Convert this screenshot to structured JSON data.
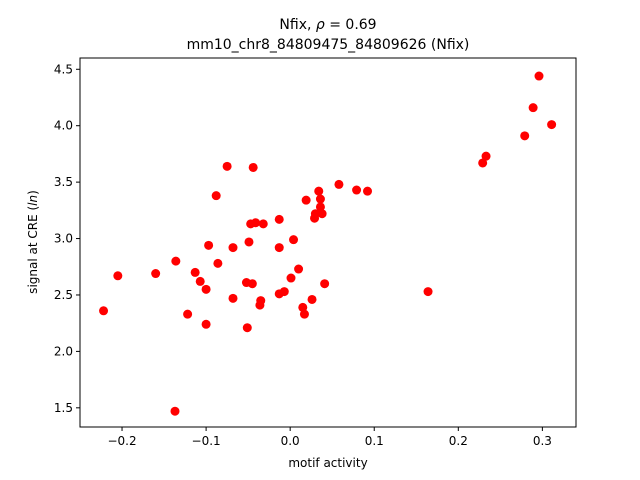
{
  "chart_data": {
    "type": "scatter",
    "title_line1_prefix": "Nfix, ",
    "title_line1_rho": "ρ",
    "title_line1_suffix": " = 0.69",
    "title_line2": "mm10_chr8_84809475_84809626 (Nfix)",
    "xlabel": "motif activity",
    "ylabel_prefix": "signal at CRE (",
    "ylabel_italic": "ln",
    "ylabel_suffix": ")",
    "xlim": [
      -0.25,
      0.34
    ],
    "ylim": [
      1.33,
      4.6
    ],
    "xticks": [
      {
        "value": -0.2,
        "label": "−0.2"
      },
      {
        "value": -0.1,
        "label": "−0.1"
      },
      {
        "value": 0.0,
        "label": "0.0"
      },
      {
        "value": 0.1,
        "label": "0.1"
      },
      {
        "value": 0.2,
        "label": "0.2"
      },
      {
        "value": 0.3,
        "label": "0.3"
      }
    ],
    "yticks": [
      {
        "value": 1.5,
        "label": "1.5"
      },
      {
        "value": 2.0,
        "label": "2.0"
      },
      {
        "value": 2.5,
        "label": "2.5"
      },
      {
        "value": 3.0,
        "label": "3.0"
      },
      {
        "value": 3.5,
        "label": "3.5"
      },
      {
        "value": 4.0,
        "label": "4.0"
      },
      {
        "value": 4.5,
        "label": "4.5"
      }
    ],
    "grid": false,
    "marker_color": "#ff0000",
    "points": [
      {
        "x": -0.222,
        "y": 2.36
      },
      {
        "x": -0.205,
        "y": 2.67
      },
      {
        "x": -0.16,
        "y": 2.69
      },
      {
        "x": -0.137,
        "y": 1.47
      },
      {
        "x": -0.136,
        "y": 2.8
      },
      {
        "x": -0.122,
        "y": 2.33
      },
      {
        "x": -0.113,
        "y": 2.7
      },
      {
        "x": -0.107,
        "y": 2.62
      },
      {
        "x": -0.1,
        "y": 2.24
      },
      {
        "x": -0.1,
        "y": 2.55
      },
      {
        "x": -0.097,
        "y": 2.94
      },
      {
        "x": -0.088,
        "y": 3.38
      },
      {
        "x": -0.086,
        "y": 2.78
      },
      {
        "x": -0.075,
        "y": 3.64
      },
      {
        "x": -0.068,
        "y": 2.47
      },
      {
        "x": -0.068,
        "y": 2.92
      },
      {
        "x": -0.052,
        "y": 2.61
      },
      {
        "x": -0.051,
        "y": 2.21
      },
      {
        "x": -0.049,
        "y": 2.97
      },
      {
        "x": -0.047,
        "y": 3.13
      },
      {
        "x": -0.045,
        "y": 2.6
      },
      {
        "x": -0.044,
        "y": 3.63
      },
      {
        "x": -0.041,
        "y": 3.14
      },
      {
        "x": -0.036,
        "y": 2.41
      },
      {
        "x": -0.035,
        "y": 2.45
      },
      {
        "x": -0.032,
        "y": 3.13
      },
      {
        "x": -0.013,
        "y": 2.92
      },
      {
        "x": -0.013,
        "y": 3.17
      },
      {
        "x": -0.013,
        "y": 2.51
      },
      {
        "x": -0.007,
        "y": 2.53
      },
      {
        "x": 0.001,
        "y": 2.65
      },
      {
        "x": 0.004,
        "y": 2.99
      },
      {
        "x": 0.01,
        "y": 2.73
      },
      {
        "x": 0.015,
        "y": 2.39
      },
      {
        "x": 0.017,
        "y": 2.33
      },
      {
        "x": 0.019,
        "y": 3.34
      },
      {
        "x": 0.026,
        "y": 2.46
      },
      {
        "x": 0.029,
        "y": 3.18
      },
      {
        "x": 0.03,
        "y": 3.22
      },
      {
        "x": 0.034,
        "y": 3.42
      },
      {
        "x": 0.036,
        "y": 3.35
      },
      {
        "x": 0.036,
        "y": 3.28
      },
      {
        "x": 0.038,
        "y": 3.22
      },
      {
        "x": 0.041,
        "y": 2.6
      },
      {
        "x": 0.058,
        "y": 3.48
      },
      {
        "x": 0.079,
        "y": 3.43
      },
      {
        "x": 0.092,
        "y": 3.42
      },
      {
        "x": 0.164,
        "y": 2.53
      },
      {
        "x": 0.229,
        "y": 3.67
      },
      {
        "x": 0.233,
        "y": 3.73
      },
      {
        "x": 0.279,
        "y": 3.91
      },
      {
        "x": 0.289,
        "y": 4.16
      },
      {
        "x": 0.296,
        "y": 4.44
      },
      {
        "x": 0.311,
        "y": 4.01
      }
    ]
  }
}
